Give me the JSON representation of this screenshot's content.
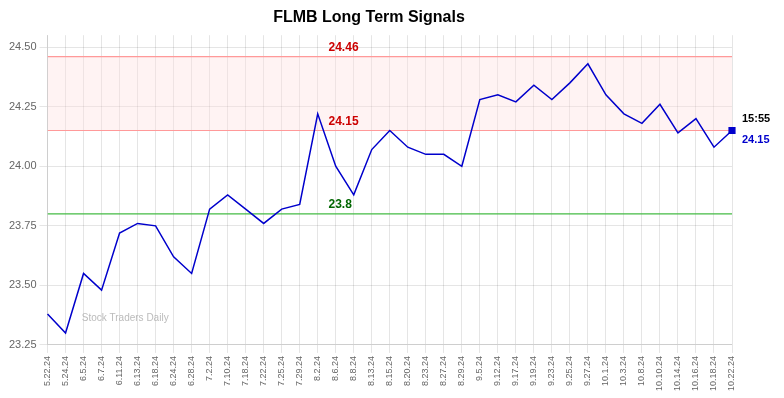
{
  "chart_data": {
    "type": "line",
    "title": "FLMB Long Term Signals",
    "categories": [
      "5.22.24",
      "5.24.24",
      "6.5.24",
      "6.7.24",
      "6.11.24",
      "6.13.24",
      "6.18.24",
      "6.24.24",
      "6.28.24",
      "7.2.24",
      "7.10.24",
      "7.18.24",
      "7.22.24",
      "7.25.24",
      "7.29.24",
      "8.2.24",
      "8.6.24",
      "8.8.24",
      "8.13.24",
      "8.15.24",
      "8.20.24",
      "8.23.24",
      "8.27.24",
      "8.29.24",
      "9.5.24",
      "9.12.24",
      "9.17.24",
      "9.19.24",
      "9.23.24",
      "9.25.24",
      "9.27.24",
      "10.1.24",
      "10.3.24",
      "10.8.24",
      "10.10.24",
      "10.14.24",
      "10.16.24",
      "10.18.24",
      "10.22.24"
    ],
    "values": [
      23.38,
      23.3,
      23.55,
      23.48,
      23.72,
      23.76,
      23.75,
      23.62,
      23.55,
      23.82,
      23.88,
      23.82,
      23.76,
      23.82,
      23.84,
      24.22,
      24.0,
      23.88,
      24.07,
      24.15,
      24.08,
      24.05,
      24.05,
      24.0,
      24.28,
      24.3,
      24.27,
      24.34,
      24.28,
      24.35,
      24.43,
      24.3,
      24.22,
      24.18,
      24.26,
      24.14,
      24.2,
      24.08,
      24.15
    ],
    "color": "#0000cc",
    "ylim": [
      23.25,
      24.55
    ],
    "yticks": [
      23.25,
      {
        "value": 23.5,
        "label": "23.50"
      },
      23.75,
      {
        "value": 24.0,
        "label": "24.00"
      },
      24.25,
      {
        "value": 24.5,
        "label": "24.50"
      }
    ],
    "grid": true,
    "reference_lines": [
      {
        "value": 24.46,
        "label": "24.46",
        "color": "#ff9999",
        "label_color": "#cc0000"
      },
      {
        "value": 24.15,
        "label": "24.15",
        "color": "#ff9999",
        "label_color": "#cc0000"
      },
      {
        "value": 23.8,
        "label": "23.8",
        "color": "#44bb44",
        "label_color": "#006600"
      }
    ],
    "band": {
      "from": 24.15,
      "to": 24.46,
      "color": "#ffdddd"
    },
    "last_point": {
      "marker": "square",
      "time_label": "15:55",
      "price_label": "24.15"
    },
    "watermark": "Stock Traders Daily"
  }
}
